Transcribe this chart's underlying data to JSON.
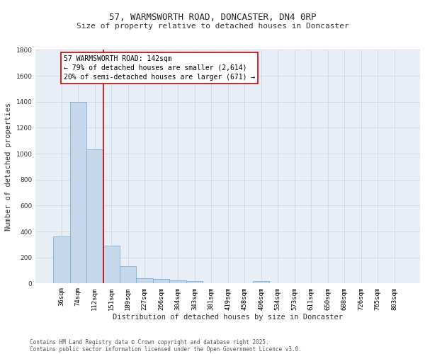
{
  "title_line1": "57, WARMSWORTH ROAD, DONCASTER, DN4 0RP",
  "title_line2": "Size of property relative to detached houses in Doncaster",
  "xlabel": "Distribution of detached houses by size in Doncaster",
  "ylabel": "Number of detached properties",
  "categories": [
    "36sqm",
    "74sqm",
    "112sqm",
    "151sqm",
    "189sqm",
    "227sqm",
    "266sqm",
    "304sqm",
    "343sqm",
    "381sqm",
    "419sqm",
    "458sqm",
    "496sqm",
    "534sqm",
    "573sqm",
    "611sqm",
    "650sqm",
    "688sqm",
    "726sqm",
    "765sqm",
    "803sqm"
  ],
  "values": [
    360,
    1400,
    1035,
    290,
    135,
    42,
    35,
    25,
    20,
    0,
    0,
    0,
    20,
    0,
    0,
    0,
    0,
    0,
    0,
    0,
    0
  ],
  "bar_color": "#c5d8ec",
  "bar_edge_color": "#7aaed4",
  "grid_color": "#c8d4e0",
  "bg_color": "#e8eef6",
  "vline_color": "#cc0000",
  "vline_position": 2.5,
  "annotation_text": "57 WARMSWORTH ROAD: 142sqm\n← 79% of detached houses are smaller (2,614)\n20% of semi-detached houses are larger (671) →",
  "ylim": [
    0,
    1800
  ],
  "yticks": [
    0,
    200,
    400,
    600,
    800,
    1000,
    1200,
    1400,
    1600,
    1800
  ],
  "footer_line1": "Contains HM Land Registry data © Crown copyright and database right 2025.",
  "footer_line2": "Contains public sector information licensed under the Open Government Licence v3.0.",
  "title_fontsize": 9,
  "subtitle_fontsize": 8,
  "axis_label_fontsize": 7.5,
  "tick_fontsize": 6.5,
  "annotation_fontsize": 7,
  "footer_fontsize": 5.5
}
